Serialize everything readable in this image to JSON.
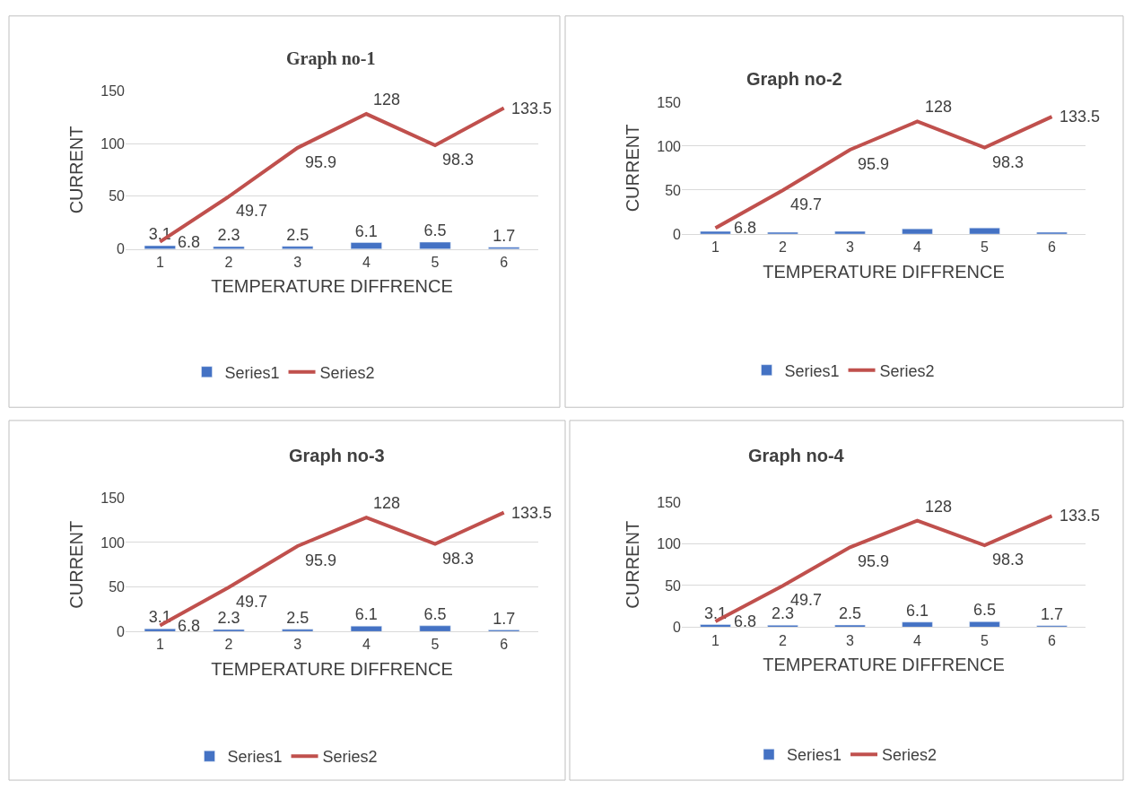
{
  "chart_data": [
    {
      "type": "bar",
      "title": "Graph no-1",
      "xlabel": "TEMPERATURE DIFFRENCE",
      "ylabel": "CURRENT",
      "categories": [
        "1",
        "2",
        "3",
        "4",
        "5",
        "6"
      ],
      "ylim": [
        0,
        150
      ],
      "yticks": [
        0,
        50,
        100,
        150
      ],
      "grid": "y",
      "legend": "bottom",
      "series": [
        {
          "name": "Series1",
          "type": "bar",
          "color": "#4472c4",
          "values": [
            3.1,
            2.3,
            2.5,
            6.1,
            6.5,
            1.7
          ],
          "data_labels": true
        },
        {
          "name": "Series2",
          "type": "line",
          "color": "#c0504d",
          "values": [
            6.8,
            49.7,
            95.9,
            128,
            98.3,
            133.5
          ],
          "data_labels": true
        }
      ]
    },
    {
      "type": "bar",
      "title": "Graph no-2",
      "xlabel": "TEMPERATURE DIFFRENCE",
      "ylabel": "CURRENT",
      "categories": [
        "1",
        "2",
        "3",
        "4",
        "5",
        "6"
      ],
      "ylim": [
        0,
        150
      ],
      "yticks": [
        0,
        50,
        100,
        150
      ],
      "grid": "y",
      "legend": "bottom",
      "series": [
        {
          "name": "Series1",
          "color": "#4472c4",
          "values": [
            3,
            2,
            3,
            6,
            7,
            2
          ]
        },
        {
          "name": "Series2",
          "type": "line",
          "color": "#c0504d",
          "values": [
            6.8,
            49.7,
            95.9,
            128,
            98.3,
            133.5
          ],
          "data_labels": true
        }
      ]
    },
    {
      "type": "bar",
      "title": "Graph no-3",
      "xlabel": "TEMPERATURE DIFFRENCE",
      "ylabel": "CURRENT",
      "categories": [
        "1",
        "2",
        "3",
        "4",
        "5",
        "6"
      ],
      "ylim": [
        0,
        150
      ],
      "yticks": [
        0,
        50,
        100,
        150
      ],
      "grid": "y",
      "legend": "bottom",
      "series": [
        {
          "name": "Series1",
          "type": "bar",
          "color": "#4472c4",
          "values": [
            3.1,
            2.3,
            2.5,
            6.1,
            6.5,
            1.7
          ],
          "data_labels": true
        },
        {
          "name": "Series2",
          "type": "line",
          "color": "#c0504d",
          "values": [
            6.8,
            49.7,
            95.9,
            128,
            98.3,
            133.5
          ],
          "data_labels": true
        }
      ]
    },
    {
      "type": "bar",
      "title": "Graph no-4",
      "xlabel": "TEMPERATURE DIFFRENCE",
      "ylabel": "CURRENT",
      "categories": [
        "1",
        "2",
        "3",
        "4",
        "5",
        "6"
      ],
      "ylim": [
        0,
        150
      ],
      "yticks": [
        0,
        50,
        100,
        150
      ],
      "grid": "y",
      "legend": "bottom",
      "series": [
        {
          "name": "Series1",
          "type": "bar",
          "color": "#4472c4",
          "values": [
            3.1,
            2.3,
            2.5,
            6.1,
            6.5,
            1.7
          ],
          "data_labels": true
        },
        {
          "name": "Series2",
          "type": "line",
          "color": "#c0504d",
          "values": [
            6.8,
            49.7,
            95.9,
            128,
            98.3,
            133.5
          ],
          "data_labels": true
        }
      ]
    }
  ]
}
